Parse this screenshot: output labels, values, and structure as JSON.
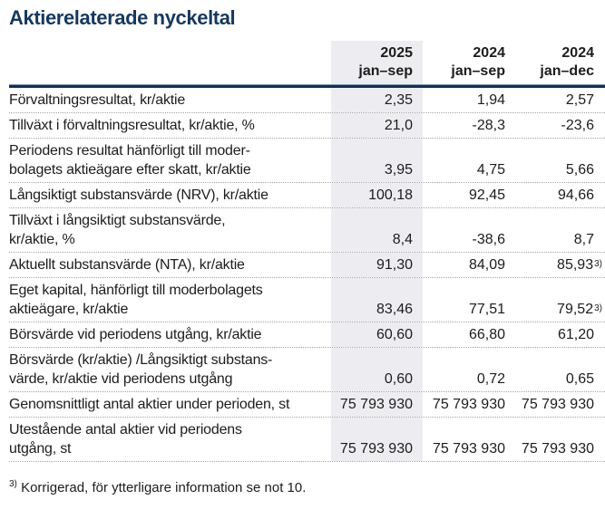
{
  "title": "Aktierelaterade nyckeltal",
  "colors": {
    "title": "#16395e",
    "header_rule": "#14304f",
    "highlight_column": "#ededf1",
    "text": "#1c1c1c"
  },
  "table": {
    "columns": [
      {
        "year": "2025",
        "period": "jan–sep",
        "highlight": true
      },
      {
        "year": "2024",
        "period": "jan–sep",
        "highlight": false
      },
      {
        "year": "2024",
        "period": "jan–dec",
        "highlight": false
      }
    ],
    "rows": [
      {
        "label": "Förvaltningsresultat, kr/aktie",
        "values": [
          {
            "text": "2,35"
          },
          {
            "text": "1,94"
          },
          {
            "text": "2,57"
          }
        ]
      },
      {
        "label": "Tillväxt i förvaltningsresultat, kr/aktie, %",
        "values": [
          {
            "text": "21,0"
          },
          {
            "text": "-28,3"
          },
          {
            "text": "-23,6"
          }
        ]
      },
      {
        "label": "Periodens resultat hänförligt till moder-\nbolagets aktieägare efter skatt, kr/aktie",
        "values": [
          {
            "text": "3,95"
          },
          {
            "text": "4,75"
          },
          {
            "text": "5,66"
          }
        ]
      },
      {
        "label": "Långsiktigt substansvärde (NRV), kr/aktie",
        "values": [
          {
            "text": "100,18"
          },
          {
            "text": "92,45"
          },
          {
            "text": "94,66"
          }
        ]
      },
      {
        "label": "Tillväxt i långsiktigt substansvärde,\nkr/aktie, %",
        "values": [
          {
            "text": "8,4"
          },
          {
            "text": "-38,6"
          },
          {
            "text": "8,7"
          }
        ]
      },
      {
        "label": "Aktuellt substansvärde (NTA), kr/aktie",
        "values": [
          {
            "text": "91,30"
          },
          {
            "text": "84,09"
          },
          {
            "text": "85,93",
            "sup": "3)"
          }
        ]
      },
      {
        "label": "Eget kapital, hänförligt till moderbolagets\naktieägare, kr/aktie",
        "values": [
          {
            "text": "83,46"
          },
          {
            "text": "77,51"
          },
          {
            "text": "79,52",
            "sup": "3)"
          }
        ]
      },
      {
        "label": "Börsvärde vid periodens utgång, kr/aktie",
        "values": [
          {
            "text": "60,60"
          },
          {
            "text": "66,80"
          },
          {
            "text": "61,20"
          }
        ]
      },
      {
        "label": "Börsvärde (kr/aktie) /Långsiktigt substans-\nvärde, kr/aktie vid periodens utgång",
        "values": [
          {
            "text": "0,60"
          },
          {
            "text": "0,72"
          },
          {
            "text": "0,65"
          }
        ]
      },
      {
        "label": "Genomsnittligt antal aktier under perioden, st",
        "values": [
          {
            "text": "75 793 930"
          },
          {
            "text": "75 793 930"
          },
          {
            "text": "75 793 930"
          }
        ]
      },
      {
        "label": "Utestående antal aktier vid periodens\nutgång, st",
        "values": [
          {
            "text": "75 793 930"
          },
          {
            "text": "75 793 930"
          },
          {
            "text": "75 793 930"
          }
        ]
      }
    ]
  },
  "footnote": {
    "marker": "3)",
    "text": "Korrigerad, för ytterligare information se not 10."
  }
}
